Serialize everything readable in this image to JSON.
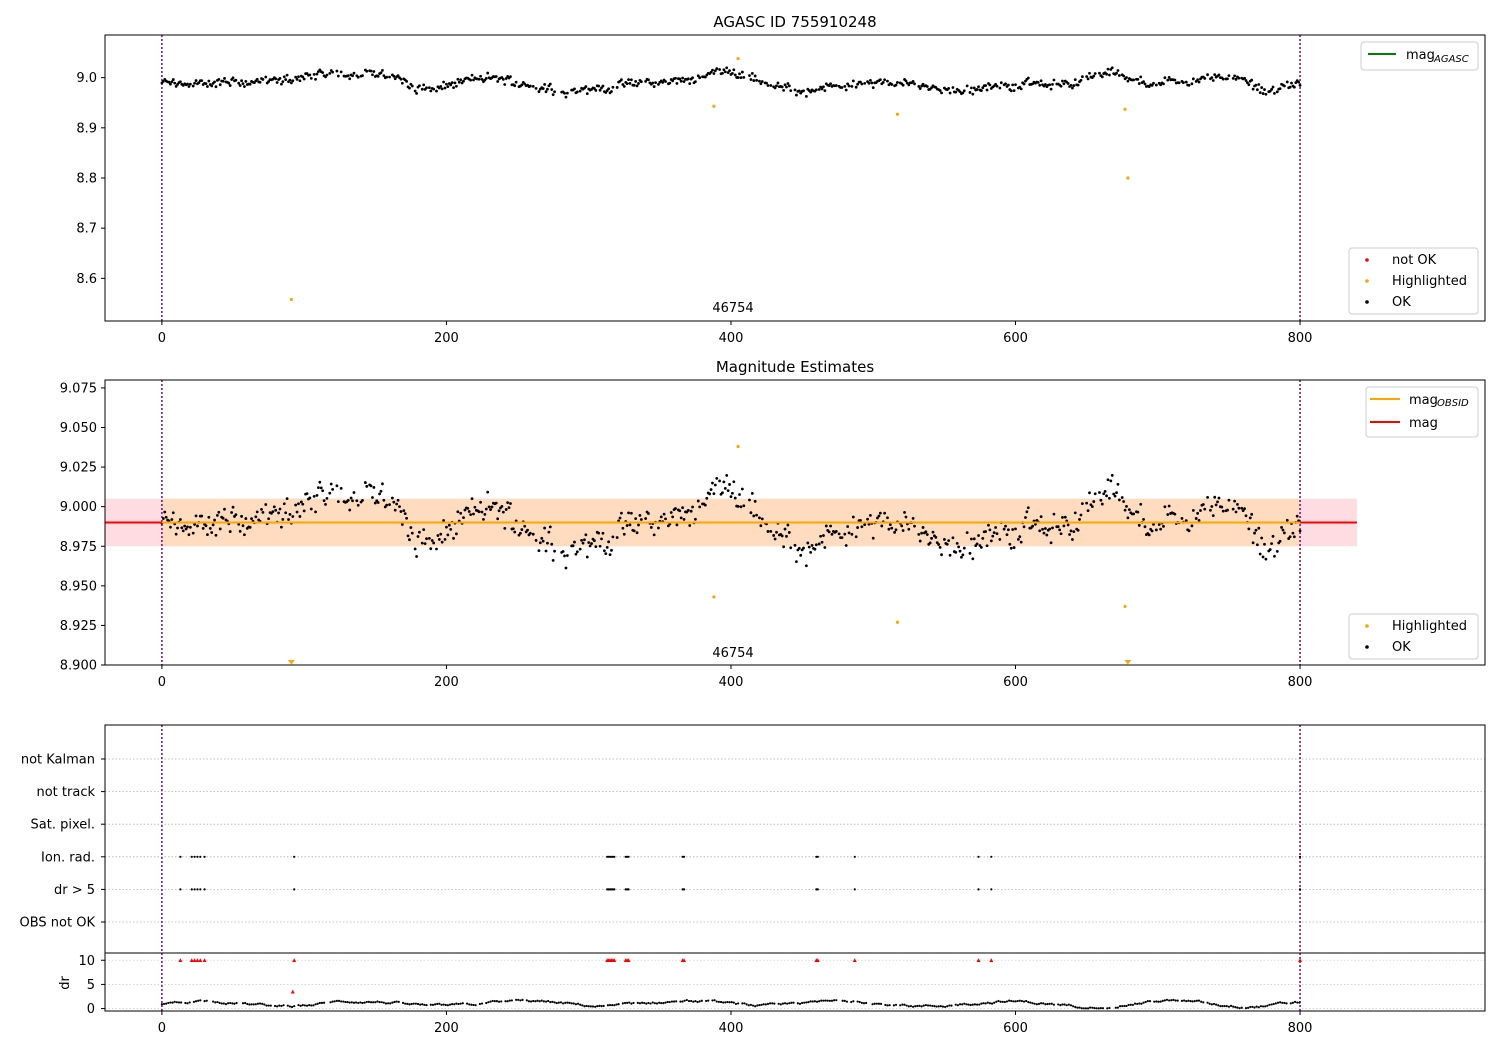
{
  "colors": {
    "ok": "#000000",
    "highlighted": "#ffa500",
    "not_ok": "#ff0000",
    "mag_agasc": "#008000",
    "mag_obsid": "#ffa500",
    "mag": "#ff0000",
    "vline": "#800080",
    "band_mag": "#ffc0cb",
    "band_obsid": "#ffdab9"
  },
  "chart_data": [
    {
      "type": "scatter",
      "title": "AGASC ID 755910248",
      "xlabel": "",
      "ylabel": "",
      "xlim": [
        -40,
        930
      ],
      "ylim": [
        8.515,
        9.085
      ],
      "xticks": [
        0,
        200,
        400,
        600,
        800
      ],
      "yticks": [
        8.6,
        8.7,
        8.8,
        8.9,
        9.0
      ],
      "ytick_labels": [
        "8.6",
        "8.7",
        "8.8",
        "8.9",
        "9.0"
      ],
      "xtick_labels": [
        "0",
        "200",
        "400",
        "600",
        "800"
      ],
      "obsid_label": "46754",
      "obsid_label_x": 400,
      "vlines": [
        0,
        800
      ],
      "legend_line": {
        "label_main": "mag",
        "label_sub": "AGASC",
        "placement": "upper right"
      },
      "legend_points": {
        "placement": "lower right",
        "entries": [
          "not OK",
          "Highlighted",
          "OK"
        ]
      },
      "series": [
        {
          "name": "not OK",
          "points": []
        },
        {
          "name": "Highlighted",
          "points": [
            [
              91,
              8.558
            ],
            [
              388,
              8.943
            ],
            [
              405,
              9.038
            ],
            [
              517,
              8.927
            ],
            [
              677,
              8.937
            ],
            [
              679,
              8.8
            ]
          ]
        },
        {
          "name": "OK",
          "base": 8.99,
          "x_range": [
            0,
            800
          ]
        }
      ]
    },
    {
      "type": "scatter",
      "title": "Magnitude Estimates",
      "xlabel": "",
      "ylabel": "",
      "xlim": [
        -40,
        930
      ],
      "ylim": [
        8.9,
        9.08
      ],
      "xticks": [
        0,
        200,
        400,
        600,
        800
      ],
      "xtick_labels": [
        "0",
        "200",
        "400",
        "600",
        "800"
      ],
      "yticks": [
        8.9,
        8.925,
        8.95,
        8.975,
        9.0,
        9.025,
        9.05,
        9.075
      ],
      "ytick_labels": [
        "8.900",
        "8.925",
        "8.950",
        "8.975",
        "9.000",
        "9.025",
        "9.050",
        "9.075"
      ],
      "obsid_label": "46754",
      "obsid_label_x": 400,
      "vlines": [
        0,
        800
      ],
      "mag": 8.99,
      "mag_band": [
        8.975,
        9.005
      ],
      "band_x": [
        -40,
        840
      ],
      "legend_line": {
        "placement": "upper right",
        "entries": [
          {
            "label_main": "mag",
            "label_sub": "OBSID"
          },
          {
            "label_main": "mag",
            "label_sub": ""
          }
        ]
      },
      "legend_points": {
        "placement": "lower right",
        "entries": [
          "Highlighted",
          "OK"
        ]
      },
      "series": [
        {
          "name": "Highlighted",
          "points": [
            [
              388,
              8.943
            ],
            [
              405,
              9.038
            ],
            [
              517,
              8.927
            ],
            [
              677,
              8.937
            ]
          ],
          "clipped_low": [
            91,
            679
          ]
        },
        {
          "name": "OK",
          "base": 8.99,
          "x_range": [
            0,
            800
          ]
        }
      ]
    },
    {
      "type": "scatter",
      "title": "",
      "xlim": [
        -40,
        930
      ],
      "xticks": [
        0,
        200,
        400,
        600,
        800
      ],
      "xtick_labels": [
        "0",
        "200",
        "400",
        "600",
        "800"
      ],
      "vlines": [
        0,
        800
      ],
      "flag_rows": [
        "not Kalman",
        "not track",
        "Sat. pixel.",
        "Ion. rad.",
        "dr > 5",
        "OBS not OK"
      ],
      "flag_points": {
        "Ion. rad.": [
          13,
          21,
          23,
          25,
          27,
          30,
          93,
          313,
          314,
          315,
          316,
          317,
          318,
          326,
          327,
          328,
          366,
          367,
          460,
          461,
          487,
          574,
          583,
          800
        ],
        "dr > 5": [
          13,
          21,
          23,
          25,
          27,
          30,
          93,
          313,
          314,
          315,
          316,
          317,
          318,
          326,
          327,
          328,
          366,
          367,
          460,
          461,
          487,
          574,
          583,
          800
        ]
      },
      "dr_ylabel": "dr",
      "dr_ylim": [
        -0.5,
        11.5
      ],
      "dr_yticks": [
        0,
        5,
        10
      ],
      "dr_ytick_labels": [
        "0",
        "5",
        "10"
      ],
      "dr_red_points": [
        [
          13,
          10
        ],
        [
          21,
          10
        ],
        [
          23,
          10
        ],
        [
          25,
          10
        ],
        [
          27,
          10
        ],
        [
          30,
          10
        ],
        [
          93,
          10
        ],
        [
          92,
          3.5
        ],
        [
          313,
          10
        ],
        [
          314,
          10
        ],
        [
          315,
          10
        ],
        [
          316,
          10
        ],
        [
          317,
          10
        ],
        [
          318,
          10
        ],
        [
          326,
          10
        ],
        [
          327,
          10
        ],
        [
          328,
          10
        ],
        [
          366,
          10
        ],
        [
          367,
          10
        ],
        [
          460,
          10
        ],
        [
          461,
          10
        ],
        [
          487,
          10
        ],
        [
          574,
          10
        ],
        [
          583,
          10
        ],
        [
          800,
          10
        ]
      ],
      "dr_black_base": 1.0
    }
  ]
}
